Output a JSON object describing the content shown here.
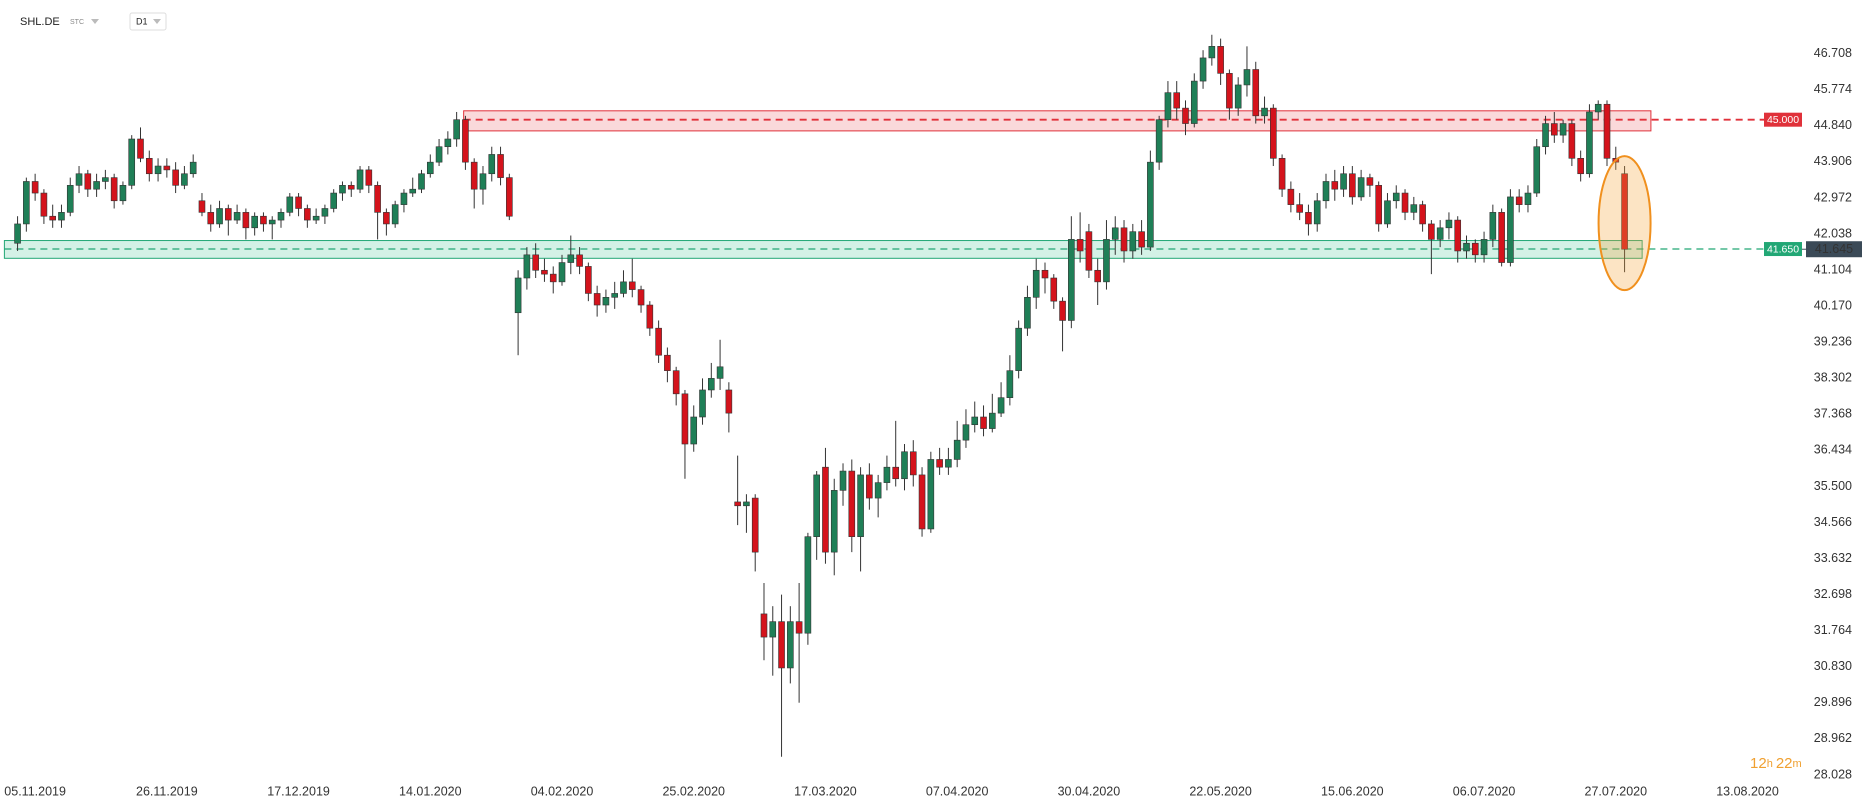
{
  "header": {
    "symbol": "SHL.DE",
    "badge": "STC",
    "interval": "D1"
  },
  "countdown": [
    "12",
    "h",
    "22",
    "m"
  ],
  "chart_data": {
    "type": "candlestick",
    "up_color": "#1f7f57",
    "down_color": "#d4131c",
    "xlim": [
      -2,
      200.7
    ],
    "ylim": [
      27.95,
      48.1
    ],
    "xticks": [
      {
        "value": 2,
        "label": "05.11.2019"
      },
      {
        "value": 17,
        "label": "26.11.2019"
      },
      {
        "value": 32,
        "label": "17.12.2019"
      },
      {
        "value": 47,
        "label": "14.01.2020"
      },
      {
        "value": 62,
        "label": "04.02.2020"
      },
      {
        "value": 77,
        "label": "25.02.2020"
      },
      {
        "value": 92,
        "label": "17.03.2020"
      },
      {
        "value": 107,
        "label": "07.04.2020"
      },
      {
        "value": 122,
        "label": "30.04.2020"
      },
      {
        "value": 137,
        "label": "22.05.2020"
      },
      {
        "value": 152,
        "label": "15.06.2020"
      },
      {
        "value": 167,
        "label": "06.07.2020"
      },
      {
        "value": 182,
        "label": "27.07.2020"
      },
      {
        "value": 197,
        "label": "13.08.2020"
      }
    ],
    "yticks": [
      46.708,
      45.774,
      {
        "value": 44.84,
        "label": "44.840"
      },
      43.906,
      42.972,
      42.038,
      41.104,
      {
        "value": 40.17,
        "label": "40.170"
      },
      39.236,
      38.302,
      37.368,
      36.434,
      {
        "value": 35.5,
        "label": "35.500"
      },
      34.566,
      33.632,
      32.698,
      31.764,
      {
        "value": 30.83,
        "label": "30.830"
      },
      29.896,
      28.962,
      28.028
    ],
    "levels": [
      {
        "value": 45,
        "label": "45.000",
        "color": "#e0313a",
        "zone": [
          44.71,
          45.23
        ],
        "zone_x": [
          50.8,
          186
        ]
      },
      {
        "value": 41.65,
        "label": "41.650",
        "color": "#22a775",
        "zone": [
          41.41,
          41.87
        ],
        "zone_x": [
          -1.5,
          185
        ]
      }
    ],
    "ohlc": [
      [
        41.8,
        42.5,
        41.6,
        42.3
      ],
      [
        42.3,
        43.5,
        42.1,
        43.4
      ],
      [
        43.4,
        43.6,
        42.9,
        43.1
      ],
      [
        43.1,
        43.2,
        42.3,
        42.5
      ],
      [
        42.5,
        42.8,
        42.2,
        42.4
      ],
      [
        42.4,
        42.8,
        42.2,
        42.6
      ],
      [
        42.6,
        43.5,
        42.5,
        43.3
      ],
      [
        43.3,
        43.8,
        43.1,
        43.6
      ],
      [
        43.6,
        43.7,
        43.0,
        43.2
      ],
      [
        43.2,
        43.6,
        43.0,
        43.4
      ],
      [
        43.4,
        43.7,
        43.2,
        43.5
      ],
      [
        43.5,
        43.6,
        42.7,
        42.9
      ],
      [
        42.9,
        43.4,
        42.8,
        43.3
      ],
      [
        43.3,
        44.6,
        43.2,
        44.5
      ],
      [
        44.5,
        44.8,
        43.9,
        44.0
      ],
      [
        44.0,
        44.2,
        43.4,
        43.6
      ],
      [
        43.6,
        44.0,
        43.4,
        43.8
      ],
      [
        43.8,
        44.0,
        43.5,
        43.7
      ],
      [
        43.7,
        43.9,
        43.1,
        43.3
      ],
      [
        43.3,
        43.8,
        43.2,
        43.6
      ],
      [
        43.6,
        44.1,
        43.5,
        43.9
      ],
      [
        42.9,
        43.1,
        42.5,
        42.6
      ],
      [
        42.6,
        42.8,
        42.1,
        42.3
      ],
      [
        42.3,
        42.9,
        42.2,
        42.7
      ],
      [
        42.7,
        42.8,
        42.0,
        42.4
      ],
      [
        42.4,
        42.8,
        42.3,
        42.6
      ],
      [
        42.6,
        42.7,
        41.9,
        42.2
      ],
      [
        42.2,
        42.6,
        42.0,
        42.5
      ],
      [
        42.5,
        42.6,
        42.1,
        42.3
      ],
      [
        42.3,
        42.5,
        41.9,
        42.4
      ],
      [
        42.4,
        42.7,
        42.2,
        42.6
      ],
      [
        42.6,
        43.1,
        42.5,
        43.0
      ],
      [
        43.0,
        43.1,
        42.5,
        42.7
      ],
      [
        42.7,
        42.8,
        42.2,
        42.4
      ],
      [
        42.4,
        42.7,
        42.3,
        42.5
      ],
      [
        42.5,
        42.8,
        42.3,
        42.7
      ],
      [
        42.7,
        43.2,
        42.6,
        43.1
      ],
      [
        43.1,
        43.4,
        42.9,
        43.3
      ],
      [
        43.3,
        43.4,
        43.0,
        43.2
      ],
      [
        43.2,
        43.8,
        43.1,
        43.7
      ],
      [
        43.7,
        43.8,
        43.1,
        43.3
      ],
      [
        43.3,
        43.4,
        41.9,
        42.6
      ],
      [
        42.6,
        42.7,
        42.0,
        42.3
      ],
      [
        42.3,
        42.9,
        42.2,
        42.8
      ],
      [
        42.8,
        43.2,
        42.6,
        43.1
      ],
      [
        43.1,
        43.5,
        43.0,
        43.2
      ],
      [
        43.2,
        43.7,
        43.1,
        43.6
      ],
      [
        43.6,
        44.1,
        43.5,
        43.9
      ],
      [
        43.9,
        44.5,
        43.8,
        44.3
      ],
      [
        44.3,
        44.7,
        44.1,
        44.5
      ],
      [
        44.5,
        45.2,
        44.3,
        45.0
      ],
      [
        45.0,
        45.1,
        43.7,
        43.9
      ],
      [
        43.9,
        44.0,
        42.7,
        43.2
      ],
      [
        43.2,
        43.8,
        42.8,
        43.6
      ],
      [
        43.6,
        44.3,
        43.4,
        44.1
      ],
      [
        44.1,
        44.3,
        43.3,
        43.5
      ],
      [
        43.5,
        43.6,
        42.4,
        42.5
      ],
      [
        40.0,
        41.1,
        38.9,
        40.9
      ],
      [
        40.9,
        41.7,
        40.6,
        41.5
      ],
      [
        41.5,
        41.8,
        40.9,
        41.1
      ],
      [
        41.1,
        41.4,
        40.8,
        41.0
      ],
      [
        41.0,
        41.2,
        40.5,
        40.8
      ],
      [
        40.8,
        41.5,
        40.7,
        41.3
      ],
      [
        41.3,
        42.0,
        41.0,
        41.5
      ],
      [
        41.5,
        41.7,
        41.0,
        41.2
      ],
      [
        41.2,
        41.3,
        40.3,
        40.5
      ],
      [
        40.5,
        40.7,
        39.9,
        40.2
      ],
      [
        40.2,
        40.6,
        40.0,
        40.4
      ],
      [
        40.4,
        40.8,
        40.1,
        40.5
      ],
      [
        40.5,
        41.1,
        40.4,
        40.8
      ],
      [
        40.8,
        41.4,
        40.4,
        40.6
      ],
      [
        40.6,
        40.7,
        40.0,
        40.2
      ],
      [
        40.2,
        40.3,
        39.4,
        39.6
      ],
      [
        39.6,
        39.8,
        38.7,
        38.9
      ],
      [
        38.9,
        39.1,
        38.2,
        38.5
      ],
      [
        38.5,
        38.6,
        37.6,
        37.9
      ],
      [
        37.9,
        38.0,
        35.7,
        36.6
      ],
      [
        36.6,
        37.6,
        36.4,
        37.3
      ],
      [
        37.3,
        38.3,
        37.1,
        38.0
      ],
      [
        38.0,
        38.7,
        37.8,
        38.3
      ],
      [
        38.3,
        39.3,
        38.0,
        38.6
      ],
      [
        38.0,
        38.2,
        36.9,
        37.4
      ],
      [
        35.1,
        36.3,
        34.5,
        35.0
      ],
      [
        35.0,
        35.3,
        34.3,
        35.1
      ],
      [
        35.2,
        35.3,
        33.3,
        33.8
      ],
      [
        32.2,
        33.0,
        31.0,
        31.6
      ],
      [
        31.6,
        32.4,
        30.6,
        32.0
      ],
      [
        32.0,
        32.7,
        28.5,
        30.8
      ],
      [
        30.8,
        32.4,
        30.4,
        32.0
      ],
      [
        32.0,
        33.0,
        29.9,
        31.7
      ],
      [
        31.7,
        34.3,
        31.4,
        34.2
      ],
      [
        34.2,
        35.9,
        33.6,
        35.8
      ],
      [
        36.0,
        36.5,
        33.5,
        33.8
      ],
      [
        33.8,
        35.7,
        33.2,
        35.4
      ],
      [
        35.4,
        36.1,
        35.0,
        35.9
      ],
      [
        35.9,
        36.2,
        33.8,
        34.2
      ],
      [
        34.2,
        36.0,
        33.3,
        35.8
      ],
      [
        35.8,
        36.1,
        34.9,
        35.2
      ],
      [
        35.2,
        35.8,
        34.7,
        35.6
      ],
      [
        35.6,
        36.3,
        35.4,
        36.0
      ],
      [
        36.0,
        37.2,
        35.5,
        35.7
      ],
      [
        35.7,
        36.6,
        35.4,
        36.4
      ],
      [
        36.4,
        36.7,
        35.5,
        35.8
      ],
      [
        35.8,
        36.0,
        34.2,
        34.4
      ],
      [
        34.4,
        36.4,
        34.3,
        36.2
      ],
      [
        36.2,
        36.5,
        35.8,
        36.0
      ],
      [
        36.0,
        36.5,
        35.8,
        36.2
      ],
      [
        36.2,
        37.2,
        36.0,
        36.7
      ],
      [
        36.7,
        37.5,
        36.5,
        37.1
      ],
      [
        37.1,
        37.7,
        36.9,
        37.3
      ],
      [
        37.3,
        37.6,
        36.8,
        37.0
      ],
      [
        37.0,
        37.9,
        36.9,
        37.4
      ],
      [
        37.4,
        38.2,
        37.3,
        37.8
      ],
      [
        37.8,
        38.9,
        37.6,
        38.5
      ],
      [
        38.5,
        39.8,
        38.3,
        39.6
      ],
      [
        39.6,
        40.7,
        39.4,
        40.4
      ],
      [
        40.4,
        41.4,
        40.1,
        41.1
      ],
      [
        41.1,
        41.3,
        40.5,
        40.9
      ],
      [
        40.9,
        41.0,
        40.1,
        40.3
      ],
      [
        40.3,
        40.4,
        39.0,
        39.8
      ],
      [
        39.8,
        42.5,
        39.6,
        41.9
      ],
      [
        41.9,
        42.6,
        41.3,
        41.6
      ],
      [
        42.1,
        42.3,
        40.9,
        41.1
      ],
      [
        41.1,
        41.4,
        40.2,
        40.8
      ],
      [
        40.8,
        42.4,
        40.6,
        41.9
      ],
      [
        41.9,
        42.5,
        41.5,
        42.2
      ],
      [
        42.2,
        42.4,
        41.3,
        41.6
      ],
      [
        41.6,
        42.3,
        41.4,
        42.1
      ],
      [
        42.1,
        42.4,
        41.5,
        41.7
      ],
      [
        41.7,
        44.2,
        41.6,
        43.9
      ],
      [
        43.9,
        45.1,
        43.7,
        45.0
      ],
      [
        45.0,
        46.0,
        44.8,
        45.7
      ],
      [
        45.7,
        46.0,
        45.0,
        45.3
      ],
      [
        45.3,
        45.5,
        44.6,
        44.9
      ],
      [
        44.9,
        46.2,
        44.8,
        46.0
      ],
      [
        46.0,
        46.8,
        45.8,
        46.6
      ],
      [
        46.6,
        47.2,
        46.4,
        46.9
      ],
      [
        46.9,
        47.1,
        45.9,
        46.2
      ],
      [
        46.2,
        46.3,
        45.0,
        45.3
      ],
      [
        45.3,
        46.1,
        45.1,
        45.9
      ],
      [
        45.9,
        46.9,
        45.6,
        46.3
      ],
      [
        46.3,
        46.5,
        44.9,
        45.1
      ],
      [
        45.1,
        45.6,
        44.9,
        45.3
      ],
      [
        45.3,
        45.4,
        43.8,
        44.0
      ],
      [
        44.0,
        44.1,
        43.0,
        43.2
      ],
      [
        43.2,
        43.4,
        42.6,
        42.8
      ],
      [
        42.8,
        43.1,
        42.4,
        42.6
      ],
      [
        42.6,
        42.8,
        42.0,
        42.3
      ],
      [
        42.3,
        43.1,
        42.1,
        42.9
      ],
      [
        42.9,
        43.6,
        42.7,
        43.4
      ],
      [
        43.4,
        43.7,
        42.9,
        43.2
      ],
      [
        43.2,
        43.8,
        43.0,
        43.6
      ],
      [
        43.6,
        43.8,
        42.8,
        43.0
      ],
      [
        43.0,
        43.7,
        42.9,
        43.5
      ],
      [
        43.5,
        43.6,
        43.0,
        43.3
      ],
      [
        43.3,
        43.4,
        42.1,
        42.3
      ],
      [
        42.3,
        43.1,
        42.2,
        42.9
      ],
      [
        42.9,
        43.3,
        42.7,
        43.1
      ],
      [
        43.1,
        43.2,
        42.4,
        42.6
      ],
      [
        42.6,
        43.0,
        42.4,
        42.8
      ],
      [
        42.8,
        42.9,
        42.1,
        42.3
      ],
      [
        42.3,
        42.4,
        41.0,
        41.9
      ],
      [
        41.9,
        42.4,
        41.7,
        42.2
      ],
      [
        42.2,
        42.6,
        41.9,
        42.4
      ],
      [
        42.4,
        42.5,
        41.3,
        41.6
      ],
      [
        41.6,
        42.0,
        41.4,
        41.8
      ],
      [
        41.8,
        41.9,
        41.3,
        41.5
      ],
      [
        41.5,
        42.1,
        41.3,
        41.9
      ],
      [
        41.9,
        42.8,
        41.7,
        42.6
      ],
      [
        42.6,
        42.7,
        41.2,
        41.3
      ],
      [
        41.3,
        43.2,
        41.2,
        43.0
      ],
      [
        43.0,
        43.2,
        42.6,
        42.8
      ],
      [
        42.8,
        43.3,
        42.6,
        43.1
      ],
      [
        43.1,
        44.5,
        43.0,
        44.3
      ],
      [
        44.3,
        45.1,
        44.1,
        44.9
      ],
      [
        44.9,
        45.2,
        44.4,
        44.6
      ],
      [
        44.6,
        45.0,
        44.4,
        44.9
      ],
      [
        44.9,
        45.0,
        43.8,
        44.0
      ],
      [
        44.0,
        44.2,
        43.4,
        43.6
      ],
      [
        43.6,
        45.4,
        43.5,
        45.2
      ],
      [
        45.2,
        45.5,
        45.0,
        45.4
      ],
      [
        45.4,
        45.5,
        43.8,
        44.0
      ],
      [
        44.0,
        44.3,
        43.7,
        43.9
      ],
      [
        43.6,
        43.8,
        41.05,
        41.645
      ]
    ]
  }
}
